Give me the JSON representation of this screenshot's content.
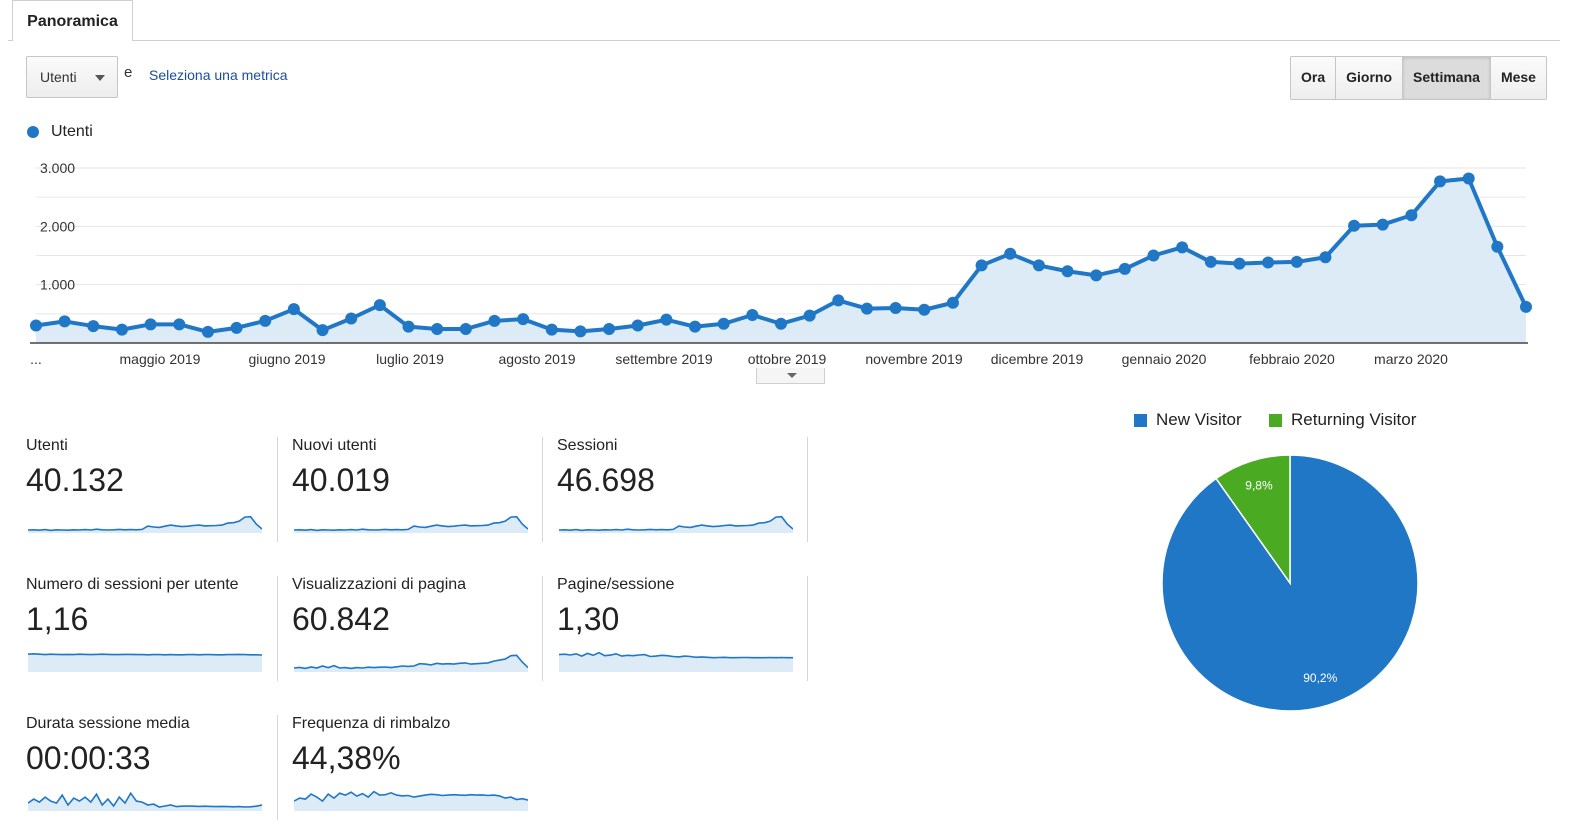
{
  "tabs": [
    {
      "label": "Panoramica",
      "active": true
    }
  ],
  "metric_selector": {
    "selected": "Utenti",
    "and_text": "e",
    "secondary_link": "Seleziona una metrica"
  },
  "period_buttons": [
    {
      "label": "Ora",
      "active": false
    },
    {
      "label": "Giorno",
      "active": false
    },
    {
      "label": "Settimana",
      "active": true
    },
    {
      "label": "Mese",
      "active": false
    }
  ],
  "colors": {
    "primary": "#1f77c6",
    "returning": "#4aab23",
    "area_fill": "#dcebf6"
  },
  "chart_data": {
    "type": "line",
    "legend": "Utenti",
    "y_ticks": [
      "3.000",
      "2.000",
      "1.000"
    ],
    "ylim": [
      0,
      3000
    ],
    "x_labels": [
      "...",
      "maggio 2019",
      "giugno 2019",
      "luglio 2019",
      "agosto 2019",
      "settembre 2019",
      "ottobre 2019",
      "novembre 2019",
      "dicembre 2019",
      "gennaio 2020",
      "febbraio 2020",
      "marzo 2020"
    ],
    "series": [
      {
        "name": "Utenti",
        "values": [
          300,
          370,
          290,
          230,
          320,
          320,
          190,
          260,
          380,
          580,
          220,
          420,
          650,
          280,
          240,
          240,
          380,
          410,
          230,
          200,
          240,
          300,
          400,
          280,
          330,
          480,
          330,
          470,
          730,
          590,
          600,
          570,
          690,
          1330,
          1530,
          1330,
          1230,
          1160,
          1270,
          1500,
          1640,
          1390,
          1360,
          1380,
          1390,
          1470,
          2010,
          2030,
          2190,
          2770,
          2820,
          1650,
          620
        ]
      }
    ]
  },
  "scorecards": [
    {
      "label": "Utenti",
      "value": "40.132",
      "spark": "users"
    },
    {
      "label": "Nuovi utenti",
      "value": "40.019",
      "spark": "users"
    },
    {
      "label": "Sessioni",
      "value": "46.698",
      "spark": "users"
    },
    {
      "label": "Numero di sessioni per utente",
      "value": "1,16",
      "spark": "flat"
    },
    {
      "label": "Visualizzazioni di pagina",
      "value": "60.842",
      "spark": "pageviews"
    },
    {
      "label": "Pagine/sessione",
      "value": "1,30",
      "spark": "pages"
    },
    {
      "label": "Durata sessione media",
      "value": "00:00:33",
      "spark": "duration"
    },
    {
      "label": "Frequenza di rimbalzo",
      "value": "44,38%",
      "spark": "bounce"
    }
  ],
  "pie": {
    "type": "pie",
    "slices": [
      {
        "label": "New Visitor",
        "value": 90.2,
        "text": "90,2%",
        "color": "#1f77c6"
      },
      {
        "label": "Returning Visitor",
        "value": 9.8,
        "text": "9,8%",
        "color": "#4aab23"
      }
    ]
  }
}
